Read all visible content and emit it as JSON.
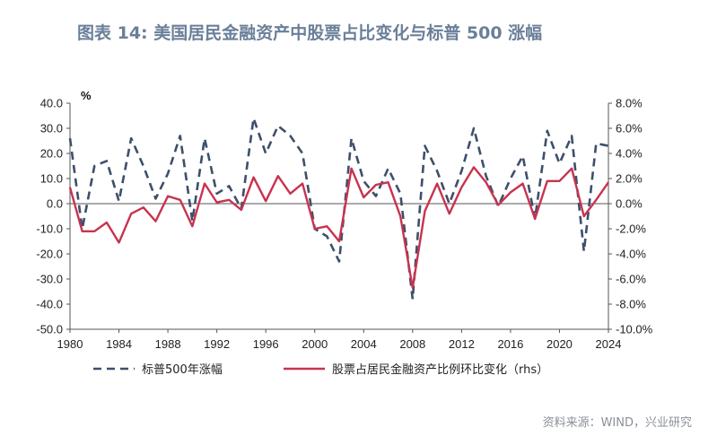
{
  "title": "图表 14: 美国居民金融资产中股票占比变化与标普 500 涨幅",
  "source": "资料来源：WIND，兴业研究",
  "chart_data": {
    "type": "line",
    "left_axis_unit": "%",
    "x": [
      1980,
      1981,
      1982,
      1983,
      1984,
      1985,
      1986,
      1987,
      1988,
      1989,
      1990,
      1991,
      1992,
      1993,
      1994,
      1995,
      1996,
      1997,
      1998,
      1999,
      2000,
      2001,
      2002,
      2003,
      2004,
      2005,
      2006,
      2007,
      2008,
      2009,
      2010,
      2011,
      2012,
      2013,
      2014,
      2015,
      2016,
      2017,
      2018,
      2019,
      2020,
      2021,
      2022,
      2023,
      2024
    ],
    "x_ticks": [
      "1980",
      "1984",
      "1988",
      "1992",
      "1996",
      "2000",
      "2004",
      "2008",
      "2012",
      "2016",
      "2020",
      "2024"
    ],
    "y_left_ticks": [
      "40.0",
      "30.0",
      "20.0",
      "10.0",
      "0.0",
      "-10.0",
      "-20.0",
      "-30.0",
      "-40.0",
      "-50.0"
    ],
    "y_right_ticks": [
      "8.0%",
      "6.0%",
      "4.0%",
      "2.0%",
      "0.0%",
      "-2.0%",
      "-4.0%",
      "-6.0%",
      "-8.0%",
      "-10.0%"
    ],
    "ylim_left": [
      -50,
      40
    ],
    "ylim_right": [
      -10,
      8
    ],
    "series": [
      {
        "name": "标普500年涨幅",
        "axis": "left",
        "style": "dashed",
        "color": "#3d4f6b",
        "values": [
          26,
          -10,
          15,
          17,
          1,
          26,
          15,
          2,
          12,
          27,
          -7,
          26,
          4,
          7,
          -2,
          34,
          20,
          31,
          27,
          20,
          -10,
          -13,
          -23,
          26,
          9,
          3,
          14,
          4,
          -38,
          23,
          13,
          0,
          13,
          30,
          11,
          -1,
          10,
          19,
          -6,
          29,
          16,
          27,
          -19,
          24,
          23
        ]
      },
      {
        "name": "股票占居民金融资产比例环比变化（rhs）",
        "axis": "right",
        "style": "solid",
        "color": "#c8334f",
        "values": [
          1.3,
          -2.2,
          -2.2,
          -1.5,
          -3.1,
          -0.8,
          -0.3,
          -1.4,
          0.6,
          0.3,
          -1.8,
          1.6,
          0.1,
          0.3,
          -0.5,
          2.1,
          0.2,
          2.2,
          0.8,
          1.6,
          -2.0,
          -1.8,
          -3.0,
          2.8,
          0.5,
          1.5,
          1.7,
          -1.0,
          -6.7,
          -0.6,
          1.6,
          -0.8,
          1.3,
          2.9,
          1.7,
          -0.1,
          0.9,
          1.6,
          -1.2,
          1.8,
          1.8,
          2.8,
          -1.0,
          0.3,
          1.7
        ]
      }
    ]
  }
}
